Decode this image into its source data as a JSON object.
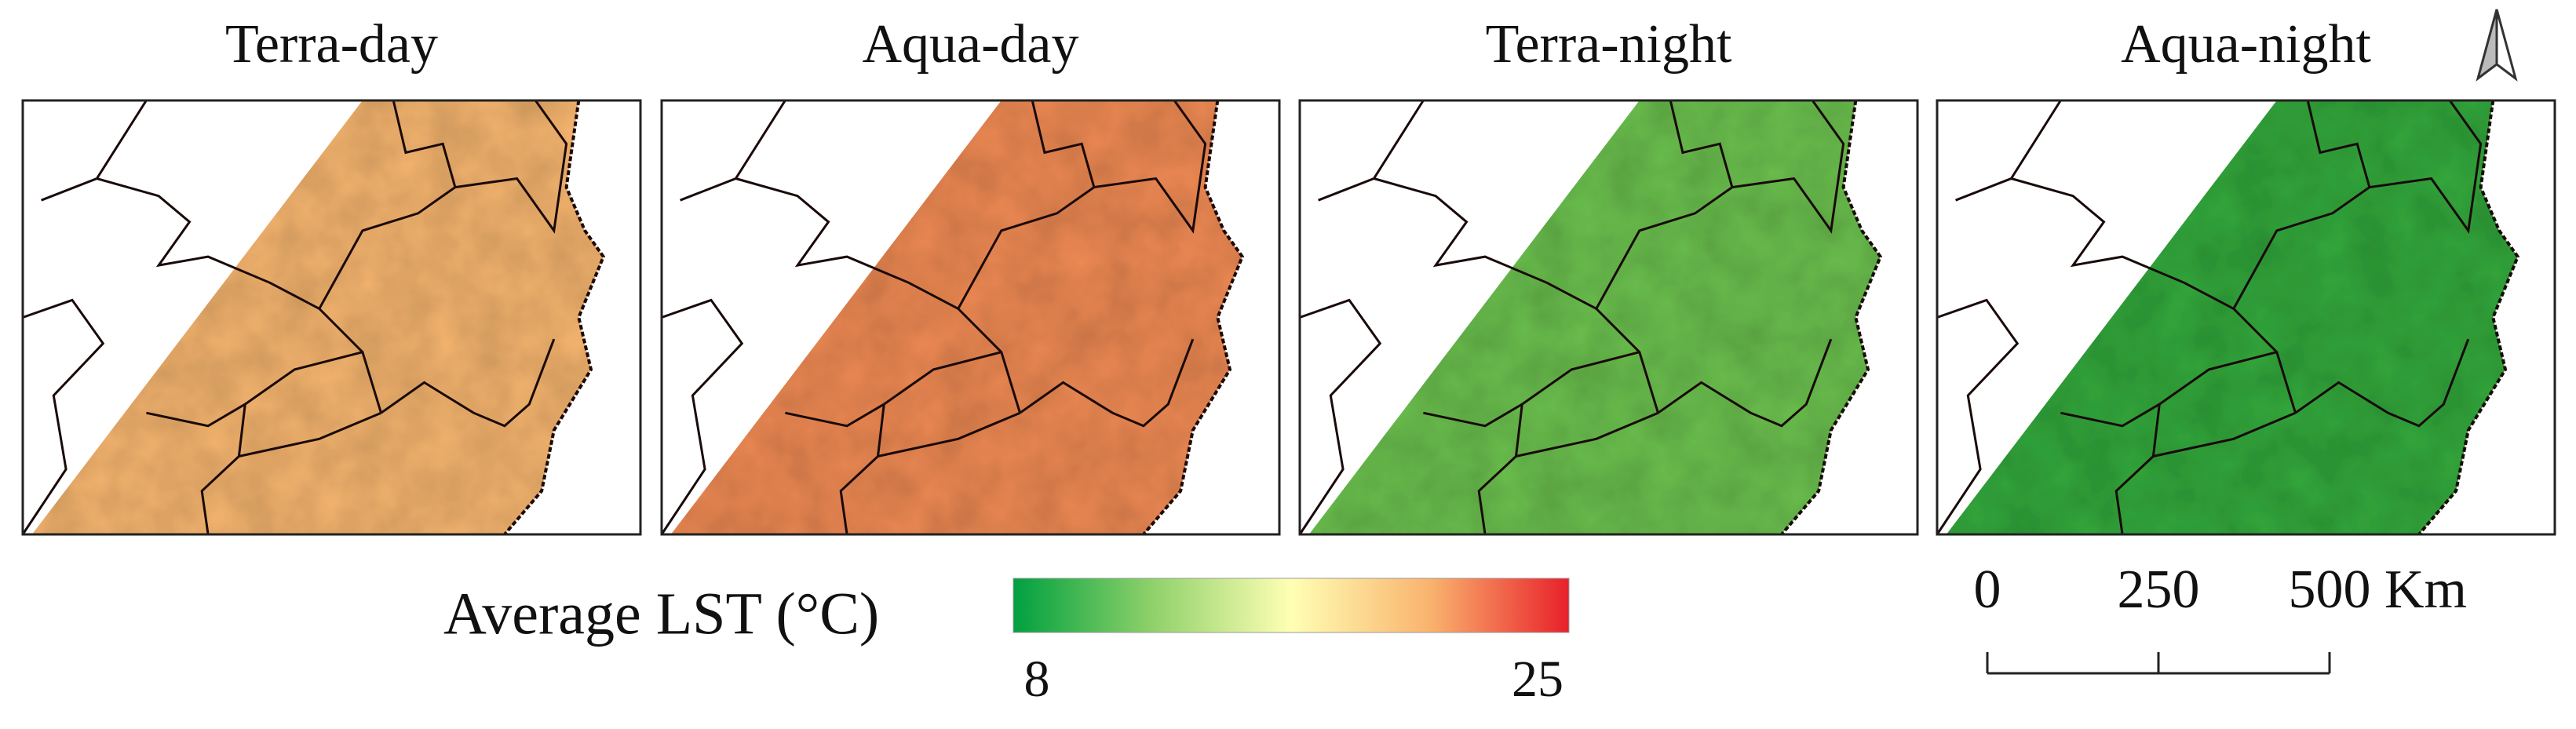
{
  "panels": [
    {
      "title": "Terra-day",
      "color": "#f5b56f"
    },
    {
      "title": "Aqua-day",
      "color": "#ee8a55"
    },
    {
      "title": "Terra-night",
      "color": "#6cc04f"
    },
    {
      "title": "Aqua-night",
      "color": "#34a83c"
    }
  ],
  "legend": {
    "title": "Average LST (°C)",
    "min": 8,
    "max": 25,
    "colors": [
      "#00a040",
      "#8fd16a",
      "#ffffb4",
      "#f9b36e",
      "#e8202a"
    ]
  },
  "scale_bar": {
    "ticks": [
      0,
      250,
      500
    ],
    "unit": "Km"
  }
}
